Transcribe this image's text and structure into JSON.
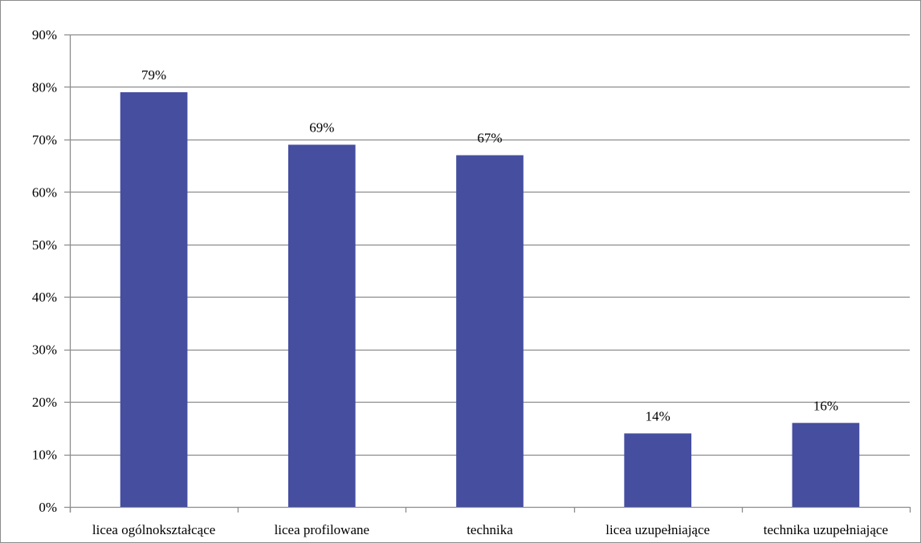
{
  "chart_data": {
    "type": "bar",
    "title": "",
    "xlabel": "",
    "ylabel": "",
    "categories": [
      "licea ogólnokształcące",
      "licea profilowane",
      "technika",
      "licea uzupełniające",
      "technika uzupełniające"
    ],
    "values": [
      79,
      69,
      67,
      14,
      16
    ],
    "data_labels": [
      "79%",
      "69%",
      "67%",
      "14%",
      "16%"
    ],
    "ylim": [
      0,
      90
    ],
    "yticks": [
      0,
      10,
      20,
      30,
      40,
      50,
      60,
      70,
      80,
      90
    ],
    "ytick_labels": [
      "0%",
      "10%",
      "20%",
      "30%",
      "40%",
      "50%",
      "60%",
      "70%",
      "80%",
      "90%"
    ],
    "grid": true,
    "legend": "none",
    "bar_color": "#464e9f",
    "grid_color": "#8c8c8c"
  }
}
